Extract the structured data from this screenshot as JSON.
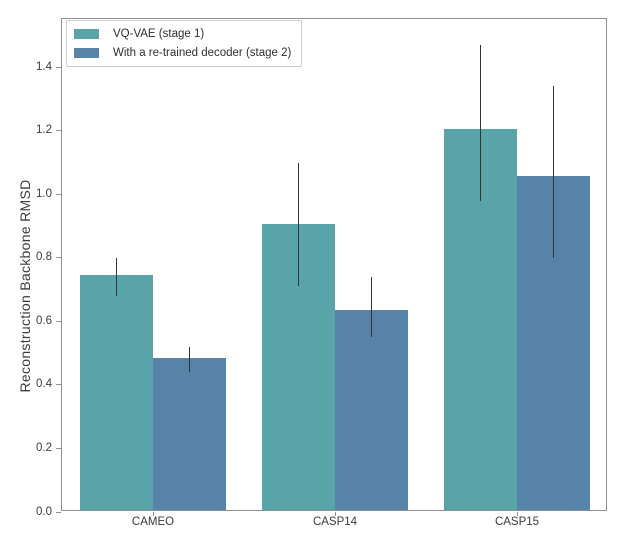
{
  "figure": {
    "background": "#ffffff",
    "spine_color": "#8f8f8f",
    "tick_color": "#8f8f8f",
    "text_color": "#3b3b3b",
    "error_bar_color": "#333333",
    "legend_border_color": "#cccccc"
  },
  "chart_data": {
    "type": "bar",
    "title": "",
    "xlabel": "",
    "ylabel": "Reconstruction Backbone RMSD",
    "categories": [
      "CAMEO",
      "CASP14",
      "CASP15"
    ],
    "series": [
      {
        "name": "VQ-VAE (stage 1)",
        "color": "#58a4a9",
        "values": [
          0.74,
          0.9,
          1.2
        ],
        "error_low": [
          0.68,
          0.71,
          0.98
        ],
        "error_high": [
          0.8,
          1.1,
          1.47
        ]
      },
      {
        "name": "With a re-trained decoder (stage 2)",
        "color": "#5783a8",
        "values": [
          0.48,
          0.63,
          1.05
        ],
        "error_low": [
          0.44,
          0.55,
          0.8
        ],
        "error_high": [
          0.52,
          0.74,
          1.34
        ]
      }
    ],
    "ylim": [
      0,
      1.552
    ],
    "yticks": [
      0.0,
      0.2,
      0.4,
      0.6,
      0.8,
      1.0,
      1.2,
      1.4
    ],
    "ytick_decimals": 1,
    "grid": false,
    "legend_position": "upper left"
  }
}
